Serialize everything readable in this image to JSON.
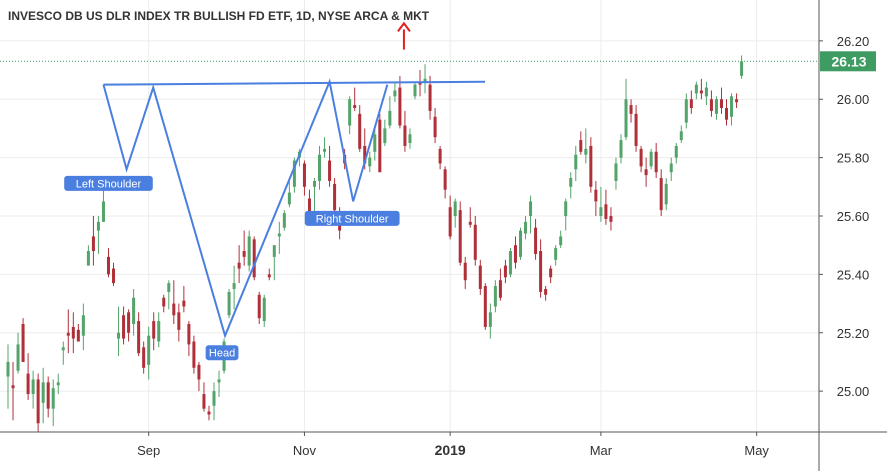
{
  "chart_data": {
    "type": "candlestick",
    "title": "INVESCO DB US DLR INDEX TR BULLISH FD ETF, 1D, NYSE ARCA & MKT",
    "ylim": [
      24.86,
      26.34
    ],
    "xlim": [
      0,
      163
    ],
    "y_ticks": [
      "26.20",
      "26.00",
      "25.80",
      "25.60",
      "25.40",
      "25.20",
      "25.00"
    ],
    "x_ticks": [
      {
        "label": "Sep",
        "i": 28,
        "bold": false
      },
      {
        "label": "Nov",
        "i": 59,
        "bold": false
      },
      {
        "label": "2019",
        "i": 88,
        "bold": true
      },
      {
        "label": "Mar",
        "i": 118,
        "bold": false
      },
      {
        "label": "May",
        "i": 149,
        "bold": false
      }
    ],
    "last_price": {
      "value": 26.13,
      "label": "26.13"
    },
    "colors": {
      "up": "#53a36a",
      "down": "#b0303a",
      "pattern": "#4a7fe0",
      "arrow": "#e02020",
      "last_bg": "#3e9b62",
      "grid": "#ececec"
    },
    "candles": [
      [
        25.05,
        25.16,
        24.94,
        25.1
      ],
      [
        25.02,
        25.1,
        24.9,
        25.01
      ],
      [
        25.07,
        25.2,
        25.06,
        25.16
      ],
      [
        25.23,
        25.25,
        25.1,
        25.1
      ],
      [
        25.06,
        25.13,
        24.97,
        24.99
      ],
      [
        24.99,
        25.07,
        24.94,
        25.04
      ],
      [
        25.04,
        25.06,
        24.86,
        24.89
      ],
      [
        24.96,
        25.08,
        24.89,
        25.03
      ],
      [
        25.03,
        25.05,
        24.91,
        24.94
      ],
      [
        24.94,
        25.04,
        24.88,
        25.01
      ],
      [
        25.02,
        25.06,
        24.99,
        25.03
      ],
      [
        25.14,
        25.17,
        25.09,
        25.15
      ],
      [
        25.2,
        25.28,
        25.13,
        25.19
      ],
      [
        25.22,
        25.27,
        25.13,
        25.18
      ],
      [
        25.21,
        25.23,
        25.17,
        25.17
      ],
      [
        25.19,
        25.3,
        25.14,
        25.26
      ],
      [
        25.43,
        25.5,
        25.43,
        25.48
      ],
      [
        25.53,
        25.6,
        25.43,
        25.48
      ],
      [
        25.55,
        25.6,
        25.47,
        25.58
      ],
      [
        25.58,
        25.69,
        25.58,
        25.65
      ],
      [
        25.46,
        25.49,
        25.39,
        25.4
      ],
      [
        25.42,
        25.44,
        25.36,
        25.37
      ],
      [
        25.18,
        25.29,
        25.12,
        25.2
      ],
      [
        25.26,
        25.29,
        25.16,
        25.18
      ],
      [
        25.27,
        25.28,
        25.17,
        25.2
      ],
      [
        25.23,
        25.35,
        25.19,
        25.32
      ],
      [
        25.24,
        25.27,
        25.12,
        25.13
      ],
      [
        25.15,
        25.17,
        25.06,
        25.08
      ],
      [
        25.09,
        25.22,
        25.04,
        25.19
      ],
      [
        25.24,
        25.27,
        25.14,
        25.18
      ],
      [
        25.17,
        25.27,
        25.15,
        25.24
      ],
      [
        25.32,
        25.33,
        25.27,
        25.29
      ],
      [
        25.34,
        25.38,
        25.28,
        25.37
      ],
      [
        25.3,
        25.38,
        25.23,
        25.26
      ],
      [
        25.27,
        25.3,
        25.17,
        25.21
      ],
      [
        25.31,
        25.36,
        25.27,
        25.29
      ],
      [
        25.23,
        25.24,
        25.12,
        25.16
      ],
      [
        25.17,
        25.19,
        25.06,
        25.08
      ],
      [
        25.09,
        25.1,
        25.0,
        25.04
      ],
      [
        24.99,
        25.03,
        24.93,
        24.94
      ],
      [
        24.93,
        24.95,
        24.9,
        24.92
      ],
      [
        24.95,
        25.03,
        24.9,
        25.0
      ],
      [
        25.03,
        25.07,
        24.98,
        25.04
      ],
      [
        25.07,
        25.18,
        25.06,
        25.17
      ],
      [
        25.26,
        25.35,
        25.25,
        25.34
      ],
      [
        25.35,
        25.43,
        25.28,
        25.37
      ],
      [
        25.44,
        25.5,
        25.37,
        25.42
      ],
      [
        25.48,
        25.55,
        25.43,
        25.46
      ],
      [
        25.43,
        25.55,
        25.41,
        25.53
      ],
      [
        25.52,
        25.53,
        25.38,
        25.39
      ],
      [
        25.33,
        25.34,
        25.23,
        25.25
      ],
      [
        25.24,
        25.33,
        25.22,
        25.32
      ],
      [
        25.4,
        25.42,
        25.38,
        25.39
      ],
      [
        25.46,
        25.5,
        25.38,
        25.5
      ],
      [
        25.53,
        25.58,
        25.47,
        25.54
      ],
      [
        25.56,
        25.62,
        25.55,
        25.61
      ],
      [
        25.64,
        25.73,
        25.63,
        25.68
      ],
      [
        25.7,
        25.8,
        25.68,
        25.79
      ],
      [
        25.8,
        25.83,
        25.77,
        25.82
      ],
      [
        25.78,
        25.79,
        25.67,
        25.7
      ],
      [
        25.66,
        25.69,
        25.58,
        25.6
      ],
      [
        25.7,
        25.73,
        25.61,
        25.72
      ],
      [
        25.72,
        25.84,
        25.69,
        25.81
      ],
      [
        25.82,
        25.87,
        25.8,
        25.83
      ],
      [
        25.79,
        25.84,
        25.7,
        25.72
      ],
      [
        25.71,
        25.73,
        25.6,
        25.62
      ],
      [
        25.6,
        25.63,
        25.52,
        25.55
      ],
      [
        25.81,
        25.83,
        25.76,
        25.78
      ],
      [
        25.91,
        26.01,
        25.88,
        26.0
      ],
      [
        25.98,
        26.04,
        25.96,
        25.97
      ],
      [
        25.95,
        25.98,
        25.82,
        25.83
      ],
      [
        25.84,
        25.9,
        25.76,
        25.78
      ],
      [
        25.77,
        25.82,
        25.75,
        25.8
      ],
      [
        25.82,
        25.91,
        25.79,
        25.88
      ],
      [
        25.93,
        25.95,
        25.75,
        25.75
      ],
      [
        25.85,
        25.93,
        25.84,
        25.9
      ],
      [
        25.91,
        26.01,
        25.9,
        25.96
      ],
      [
        26.01,
        26.06,
        25.99,
        26.03
      ],
      [
        26.04,
        26.08,
        25.9,
        25.91
      ],
      [
        25.91,
        25.96,
        25.82,
        25.84
      ],
      [
        25.85,
        25.9,
        25.83,
        25.88
      ],
      [
        26.01,
        26.06,
        26.0,
        26.05
      ],
      [
        26.06,
        26.1,
        26.01,
        26.05
      ],
      [
        26.06,
        26.12,
        26.02,
        26.07
      ],
      [
        26.05,
        26.08,
        25.93,
        25.96
      ],
      [
        25.94,
        25.97,
        25.85,
        25.87
      ],
      [
        25.83,
        25.84,
        25.76,
        25.78
      ],
      [
        25.76,
        25.77,
        25.66,
        25.69
      ],
      [
        25.63,
        25.67,
        25.52,
        25.53
      ],
      [
        25.6,
        25.66,
        25.56,
        25.65
      ],
      [
        25.62,
        25.65,
        25.43,
        25.44
      ],
      [
        25.44,
        25.46,
        25.35,
        25.38
      ],
      [
        25.58,
        25.63,
        25.56,
        25.57
      ],
      [
        25.57,
        25.6,
        25.43,
        25.45
      ],
      [
        25.43,
        25.45,
        25.33,
        25.35
      ],
      [
        25.36,
        25.37,
        25.21,
        25.22
      ],
      [
        25.22,
        25.3,
        25.18,
        25.27
      ],
      [
        25.29,
        25.38,
        25.27,
        25.36
      ],
      [
        25.38,
        25.42,
        25.31,
        25.32
      ],
      [
        25.43,
        25.45,
        25.37,
        25.39
      ],
      [
        25.4,
        25.49,
        25.39,
        25.48
      ],
      [
        25.5,
        25.53,
        25.42,
        25.44
      ],
      [
        25.46,
        25.56,
        25.45,
        25.55
      ],
      [
        25.54,
        25.6,
        25.52,
        25.58
      ],
      [
        25.6,
        25.67,
        25.54,
        25.65
      ],
      [
        25.56,
        25.59,
        25.45,
        25.47
      ],
      [
        25.48,
        25.52,
        25.32,
        25.34
      ],
      [
        25.35,
        25.36,
        25.31,
        25.33
      ],
      [
        25.42,
        25.43,
        25.37,
        25.39
      ],
      [
        25.45,
        25.5,
        25.43,
        25.49
      ],
      [
        25.5,
        25.55,
        25.49,
        25.53
      ],
      [
        25.6,
        25.66,
        25.55,
        25.65
      ],
      [
        25.7,
        25.75,
        25.66,
        25.73
      ],
      [
        25.76,
        25.84,
        25.72,
        25.81
      ],
      [
        25.86,
        25.89,
        25.81,
        25.82
      ],
      [
        25.81,
        25.9,
        25.78,
        25.83
      ],
      [
        25.84,
        25.87,
        25.68,
        25.7
      ],
      [
        25.69,
        25.72,
        25.6,
        25.65
      ],
      [
        25.6,
        25.7,
        25.58,
        25.63
      ],
      [
        25.64,
        25.69,
        25.57,
        25.59
      ],
      [
        25.6,
        25.63,
        25.55,
        25.58
      ],
      [
        25.72,
        25.8,
        25.69,
        25.78
      ],
      [
        25.8,
        25.88,
        25.78,
        25.86
      ],
      [
        25.87,
        26.07,
        25.86,
        26.0
      ],
      [
        25.98,
        26.0,
        25.92,
        25.95
      ],
      [
        25.95,
        25.98,
        25.82,
        25.84
      ],
      [
        25.83,
        25.84,
        25.75,
        25.77
      ],
      [
        25.76,
        25.8,
        25.7,
        25.74
      ],
      [
        25.77,
        25.83,
        25.76,
        25.82
      ],
      [
        25.82,
        25.85,
        25.73,
        25.75
      ],
      [
        25.73,
        25.76,
        25.6,
        25.62
      ],
      [
        25.64,
        25.73,
        25.62,
        25.71
      ],
      [
        25.75,
        25.8,
        25.72,
        25.78
      ],
      [
        25.8,
        25.85,
        25.78,
        25.84
      ],
      [
        25.86,
        25.91,
        25.85,
        25.89
      ],
      [
        25.92,
        26.02,
        25.9,
        26.0
      ],
      [
        26.0,
        26.03,
        25.95,
        25.97
      ],
      [
        26.02,
        26.06,
        26.0,
        26.05
      ],
      [
        26.03,
        26.07,
        26.0,
        26.02
      ],
      [
        26.01,
        26.06,
        25.98,
        26.04
      ],
      [
        26.0,
        26.03,
        25.94,
        25.96
      ],
      [
        25.95,
        26.01,
        25.93,
        26.0
      ],
      [
        26.0,
        26.04,
        25.95,
        25.97
      ],
      [
        25.97,
        26.0,
        25.91,
        25.93
      ],
      [
        25.94,
        26.02,
        25.91,
        26.01
      ],
      [
        26.0,
        26.02,
        25.97,
        25.99
      ],
      [
        26.08,
        26.15,
        26.07,
        26.13
      ]
    ],
    "candle_start_index": 0,
    "pattern_line": [
      [
        19.0,
        26.05
      ],
      [
        23.6,
        25.76
      ],
      [
        28.9,
        26.04
      ],
      [
        43.2,
        25.19
      ],
      [
        64.0,
        26.06
      ],
      [
        68.7,
        25.65
      ],
      [
        75.5,
        26.05
      ]
    ],
    "neckline": [
      [
        19.0,
        26.05
      ],
      [
        83.0,
        26.06
      ]
    ],
    "annotations": [
      {
        "label": "Left Shoulder",
        "i": 20.0,
        "y": 25.71
      },
      {
        "label": "Head",
        "i": 42.6,
        "y": 25.13
      },
      {
        "label": "Right Shoulder",
        "i": 68.5,
        "y": 25.59
      }
    ],
    "arrow": {
      "i": 78.8,
      "from": 26.17,
      "to": 26.26
    }
  }
}
